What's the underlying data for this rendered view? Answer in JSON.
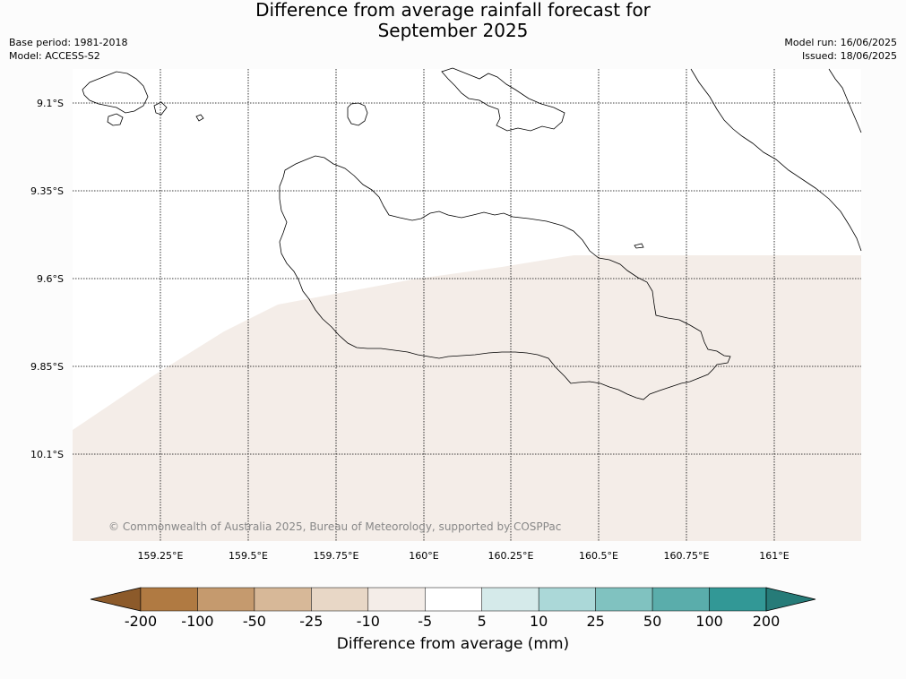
{
  "title": {
    "line1": "Difference from average rainfall forecast for",
    "line2": "September 2025"
  },
  "meta_left": {
    "base_period": "Base period: 1981-2018",
    "model": "Model: ACCESS-S2"
  },
  "meta_right": {
    "model_run": "Model run: 16/06/2025",
    "issued": "Issued: 18/06/2025"
  },
  "map": {
    "lat_labels": [
      "9.1°S",
      "9.35°S",
      "9.6°S",
      "9.85°S",
      "10.1°S"
    ],
    "lon_labels": [
      "159.25°E",
      "159.5°E",
      "159.75°E",
      "160°E",
      "160.25°E",
      "160.5°E",
      "160.75°E",
      "161°E"
    ],
    "copyright": "© Commonwealth of Australia 2025, Bureau of Meteorology, supported by COSPPac",
    "forecast_category": "-10 to -5",
    "forecast_fill_color": "#f4ede8"
  },
  "colorbar": {
    "label": "Difference from average (mm)",
    "ticks": [
      "-200",
      "-100",
      "-50",
      "-25",
      "-10",
      "-5",
      "5",
      "10",
      "25",
      "50",
      "100",
      "200"
    ],
    "colors": [
      "#8c5a2a",
      "#b07a42",
      "#c59a6e",
      "#d7b898",
      "#e8d7c6",
      "#f4ede8",
      "#ffffff",
      "#d5eaea",
      "#abd8d8",
      "#80c2c0",
      "#5aadab",
      "#329896",
      "#267b78"
    ]
  }
}
